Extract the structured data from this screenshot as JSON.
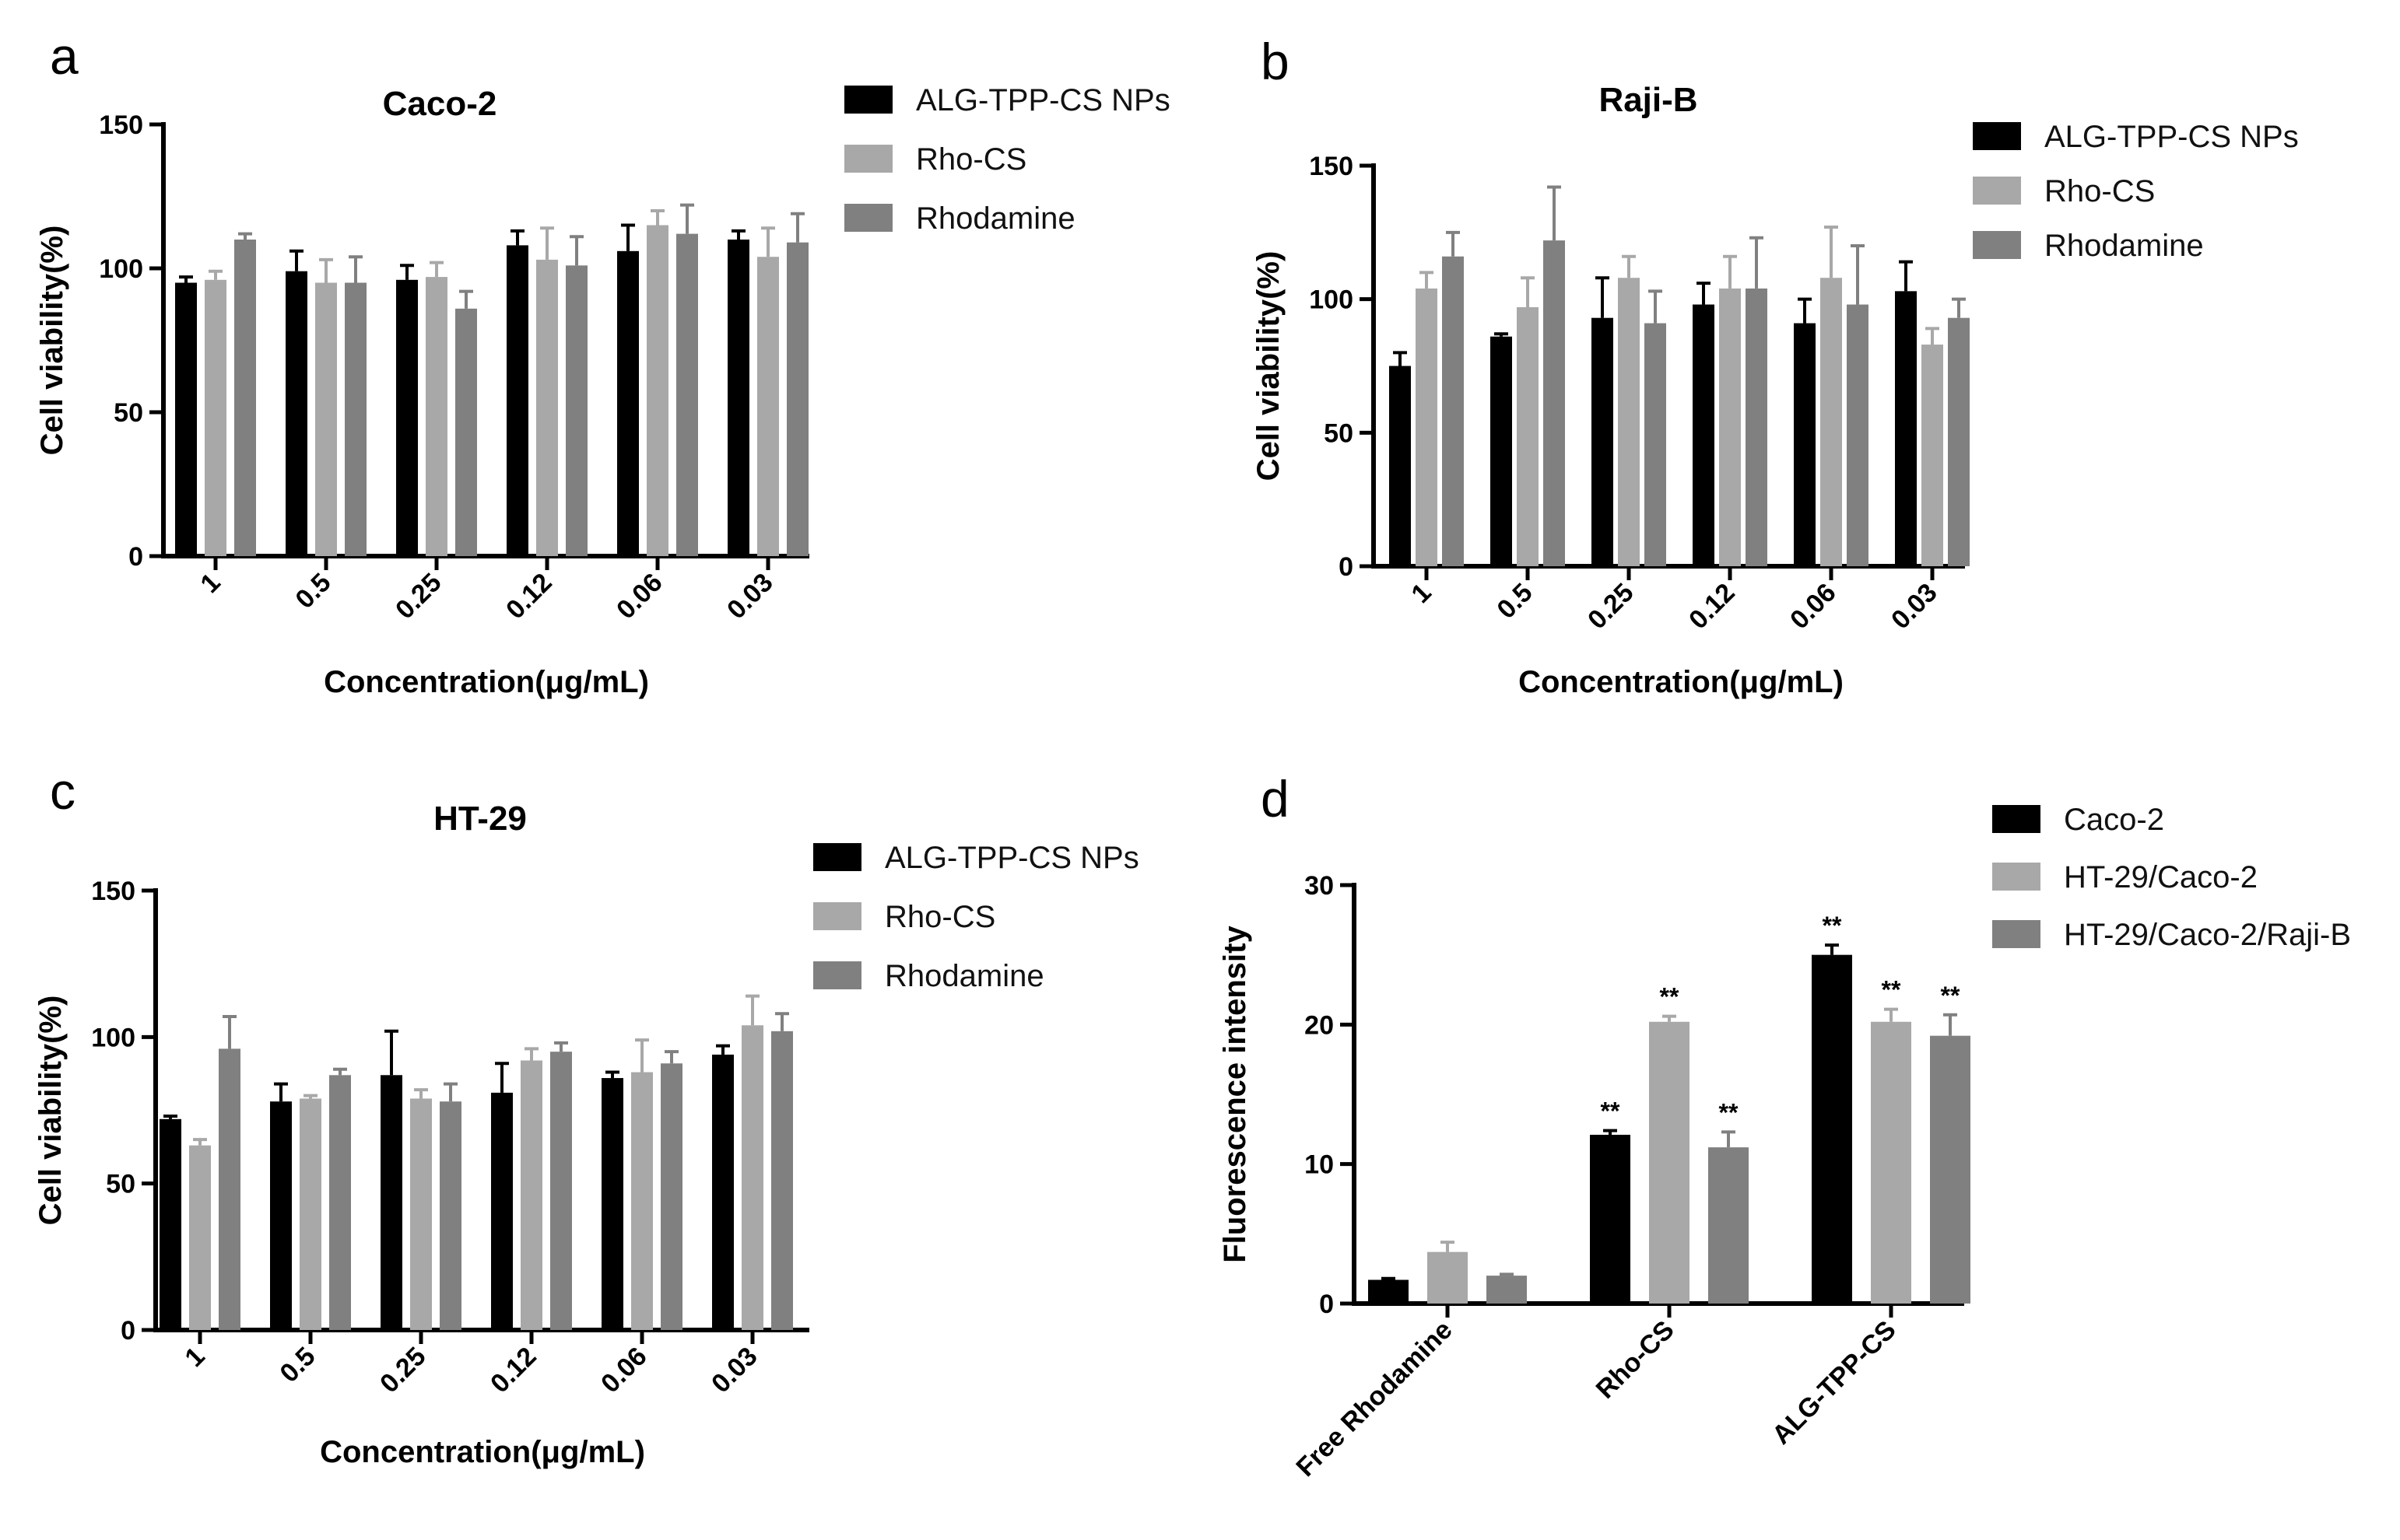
{
  "colors": {
    "s1": "#000000",
    "s2": "#a8a8a8",
    "s3": "#808080"
  },
  "chart_data": [
    {
      "id": "a",
      "letter": "a",
      "type": "bar",
      "title": "Caco-2",
      "xlabel": "Concentration(μg/mL)",
      "ylabel": "Cell viability(%)",
      "ylim": [
        0,
        150
      ],
      "yticks": [
        0,
        50,
        100,
        150
      ],
      "categories": [
        "1",
        "0.5",
        "0.25",
        "0.12",
        "0.06",
        "0.03"
      ],
      "series": [
        {
          "name": "ALG-TPP-CS NPs",
          "values": [
            95,
            99,
            96,
            108,
            106,
            110
          ],
          "errors": [
            2,
            7,
            5,
            5,
            9,
            3
          ]
        },
        {
          "name": "Rho-CS",
          "values": [
            96,
            95,
            97,
            103,
            115,
            104
          ],
          "errors": [
            3,
            8,
            5,
            11,
            5,
            10
          ]
        },
        {
          "name": "Rhodamine",
          "values": [
            110,
            95,
            86,
            101,
            112,
            109
          ],
          "errors": [
            2,
            9,
            6,
            10,
            10,
            10
          ]
        }
      ],
      "annotations": []
    },
    {
      "id": "b",
      "letter": "b",
      "type": "bar",
      "title": "Raji-B",
      "xlabel": "Concentration(μg/mL)",
      "ylabel": "Cell viability(%)",
      "ylim": [
        0,
        150
      ],
      "yticks": [
        0,
        50,
        100,
        150
      ],
      "categories": [
        "1",
        "0.5",
        "0.25",
        "0.12",
        "0.06",
        "0.03"
      ],
      "series": [
        {
          "name": "ALG-TPP-CS NPs",
          "values": [
            75,
            86,
            93,
            98,
            91,
            103
          ],
          "errors": [
            5,
            1,
            15,
            8,
            9,
            11
          ]
        },
        {
          "name": "Rho-CS",
          "values": [
            104,
            97,
            108,
            104,
            108,
            83
          ],
          "errors": [
            6,
            11,
            8,
            12,
            19,
            6
          ]
        },
        {
          "name": "Rhodamine",
          "values": [
            116,
            122,
            91,
            104,
            98,
            93
          ],
          "errors": [
            9,
            20,
            12,
            19,
            22,
            7
          ]
        }
      ],
      "annotations": []
    },
    {
      "id": "c",
      "letter": "c",
      "type": "bar",
      "title": "HT-29",
      "xlabel": "Concentration(μg/mL)",
      "ylabel": "Cell viability(%)",
      "ylim": [
        0,
        150
      ],
      "yticks": [
        0,
        50,
        100,
        150
      ],
      "categories": [
        "1",
        "0.5",
        "0.25",
        "0.12",
        "0.06",
        "0.03"
      ],
      "series": [
        {
          "name": "ALG-TPP-CS NPs",
          "values": [
            72,
            78,
            87,
            81,
            86,
            94
          ],
          "errors": [
            1,
            6,
            15,
            10,
            2,
            3
          ]
        },
        {
          "name": "Rho-CS",
          "values": [
            63,
            79,
            79,
            92,
            88,
            104
          ],
          "errors": [
            2,
            1,
            3,
            4,
            11,
            10
          ]
        },
        {
          "name": "Rhodamine",
          "values": [
            96,
            87,
            78,
            95,
            91,
            102
          ],
          "errors": [
            11,
            2,
            6,
            3,
            4,
            6
          ]
        }
      ],
      "annotations": []
    },
    {
      "id": "d",
      "letter": "d",
      "type": "bar",
      "title": "",
      "xlabel": "",
      "ylabel": "Fluorescence intensity",
      "ylim": [
        0,
        30
      ],
      "yticks": [
        0,
        10,
        20,
        30
      ],
      "categories": [
        "Free Rhodamine",
        "Rho-CS",
        "ALG-TPP-CS"
      ],
      "series": [
        {
          "name": "Caco-2",
          "values": [
            1.7,
            12.1,
            25.0
          ],
          "errors": [
            0.1,
            0.3,
            0.7
          ]
        },
        {
          "name": "HT-29/Caco-2",
          "values": [
            3.7,
            20.2,
            20.2
          ],
          "errors": [
            0.7,
            0.4,
            0.9
          ]
        },
        {
          "name": "HT-29/Caco-2/Raji-B",
          "values": [
            2.0,
            11.2,
            19.2
          ],
          "errors": [
            0.1,
            1.1,
            1.5
          ]
        }
      ],
      "annotations": [
        {
          "text": "**",
          "category": 1,
          "series": 0
        },
        {
          "text": "**",
          "category": 1,
          "series": 1
        },
        {
          "text": "**",
          "category": 1,
          "series": 2
        },
        {
          "text": "**",
          "category": 2,
          "series": 0
        },
        {
          "text": "**",
          "category": 2,
          "series": 1
        },
        {
          "text": "**",
          "category": 2,
          "series": 2
        }
      ]
    }
  ]
}
